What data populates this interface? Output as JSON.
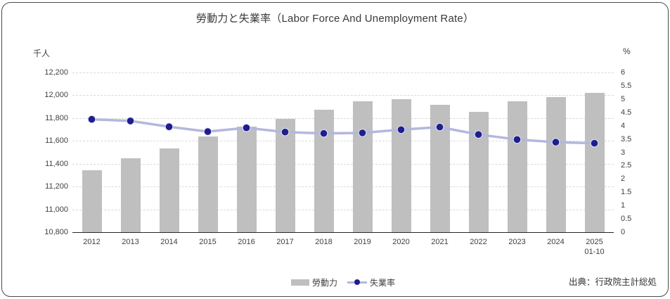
{
  "title": "勞動力と失業率（Labor Force And Unemployment Rate）",
  "source": "出典：行政院主計総処",
  "legend": {
    "items": [
      {
        "label": "勞動力",
        "swatch": "bar"
      },
      {
        "label": "失業率",
        "swatch": "line"
      }
    ]
  },
  "colors": {
    "bar": "#bfbfbf",
    "line": "#b4b7dd",
    "marker": "#1e1e8c",
    "marker_ring": "#e2e2f2",
    "grid": "#d9d9d9",
    "axis_line": "#262626",
    "tick_text": "#404040",
    "title_text": "#383838"
  },
  "chart_data": {
    "type": "bar+line",
    "title": "勞動力と失業率（Labor Force And Unemployment Rate）",
    "categories": [
      "2012",
      "2013",
      "2014",
      "2015",
      "2016",
      "2017",
      "2018",
      "2019",
      "2020",
      "2021",
      "2022",
      "2023",
      "2024",
      "2025\n01-10"
    ],
    "series": [
      {
        "name": "勞動力",
        "type": "bar",
        "yaxis": "left",
        "unit": "千人",
        "values": [
          11341,
          11445,
          11535,
          11638,
          11727,
          11795,
          11874,
          11946,
          11964,
          11919,
          11853,
          11945,
          11986,
          12022
        ]
      },
      {
        "name": "失業率",
        "type": "line",
        "yaxis": "right",
        "unit": "%",
        "values": [
          4.24,
          4.18,
          3.96,
          3.78,
          3.92,
          3.76,
          3.71,
          3.73,
          3.85,
          3.95,
          3.67,
          3.48,
          3.38,
          3.34
        ]
      }
    ],
    "left_axis": {
      "label": "千人",
      "min": 10800,
      "max": 12200,
      "step": 200
    },
    "right_axis": {
      "label": "%",
      "min": 0,
      "max": 6,
      "step": 0.5
    },
    "grid": true,
    "legend_position": "bottom"
  }
}
